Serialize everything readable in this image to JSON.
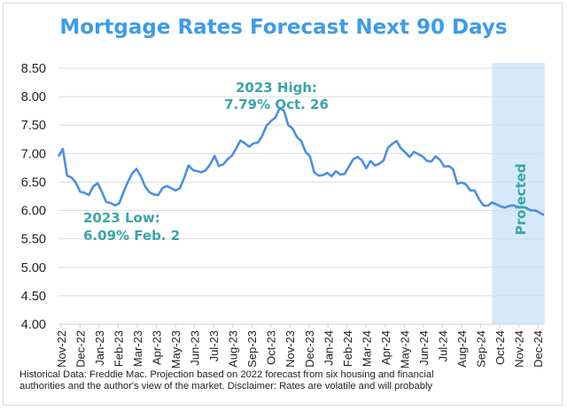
{
  "chart_data": {
    "type": "line",
    "title": "Mortgage Rates Forecast Next 90 Days",
    "xlabel": "",
    "ylabel": "",
    "ylim": [
      4.0,
      8.5
    ],
    "yticks": [
      "4.00",
      "4.50",
      "5.00",
      "5.50",
      "6.00",
      "6.50",
      "7.00",
      "7.50",
      "8.00",
      "8.50"
    ],
    "xticks": [
      "Nov-22",
      "Dec-22",
      "Jan-23",
      "Feb-23",
      "Mar-23",
      "Apr-23",
      "May-23",
      "Jun-23",
      "Jul-23",
      "Aug-23",
      "Sep-23",
      "Oct-23",
      "Nov-23",
      "Dec-23",
      "Jan-24",
      "Feb-24",
      "Mar-24",
      "Apr-24",
      "May-24",
      "Jun-24",
      "Jul-24",
      "Aug-24",
      "Sep-24",
      "Oct-24",
      "Nov-24",
      "Dec-24"
    ],
    "grid": true,
    "line_color": "#4a90e2",
    "projected_band_color": "#d6e9fb",
    "series": [
      {
        "x": [
          "2022-11-03",
          "2022-11-10",
          "2022-11-17",
          "2022-11-23",
          "2022-12-01",
          "2022-12-08",
          "2022-12-15",
          "2022-12-22",
          "2022-12-29",
          "2023-01-05",
          "2023-01-12",
          "2023-01-19",
          "2023-01-26",
          "2023-02-02",
          "2023-02-09",
          "2023-02-16",
          "2023-02-23",
          "2023-03-02",
          "2023-03-09",
          "2023-03-16",
          "2023-03-23",
          "2023-03-30",
          "2023-04-06",
          "2023-04-13",
          "2023-04-20",
          "2023-04-27",
          "2023-05-04",
          "2023-05-11",
          "2023-05-18",
          "2023-05-25",
          "2023-06-01",
          "2023-06-08",
          "2023-06-15",
          "2023-06-22",
          "2023-06-29",
          "2023-07-06",
          "2023-07-13",
          "2023-07-20",
          "2023-07-27",
          "2023-08-03",
          "2023-08-10",
          "2023-08-17",
          "2023-08-24",
          "2023-08-31",
          "2023-09-07",
          "2023-09-14",
          "2023-09-21",
          "2023-09-28",
          "2023-10-05",
          "2023-10-12",
          "2023-10-19",
          "2023-10-26",
          "2023-11-02",
          "2023-11-09",
          "2023-11-16",
          "2023-11-22",
          "2023-11-30",
          "2023-12-07",
          "2023-12-14",
          "2023-12-21",
          "2023-12-28",
          "2024-01-04",
          "2024-01-11",
          "2024-01-18",
          "2024-01-25",
          "2024-02-01",
          "2024-02-08",
          "2024-02-15",
          "2024-02-22",
          "2024-02-29",
          "2024-03-07",
          "2024-03-14",
          "2024-03-21",
          "2024-03-28",
          "2024-04-04",
          "2024-04-11",
          "2024-04-18",
          "2024-04-25",
          "2024-05-02",
          "2024-05-09",
          "2024-05-16",
          "2024-05-23",
          "2024-05-30",
          "2024-06-06",
          "2024-06-13",
          "2024-06-20",
          "2024-06-27",
          "2024-07-03",
          "2024-07-11",
          "2024-07-18",
          "2024-07-25",
          "2024-08-01",
          "2024-08-08",
          "2024-08-15",
          "2024-08-22",
          "2024-08-29",
          "2024-09-05",
          "2024-09-12",
          "2024-09-19",
          "2024-09-26"
        ],
        "y": [
          6.95,
          7.08,
          6.61,
          6.58,
          6.49,
          6.33,
          6.31,
          6.27,
          6.42,
          6.48,
          6.33,
          6.15,
          6.13,
          6.09,
          6.12,
          6.32,
          6.5,
          6.65,
          6.73,
          6.6,
          6.42,
          6.32,
          6.28,
          6.27,
          6.39,
          6.43,
          6.39,
          6.35,
          6.39,
          6.57,
          6.79,
          6.71,
          6.69,
          6.67,
          6.71,
          6.81,
          6.96,
          6.78,
          6.81,
          6.9,
          6.96,
          7.09,
          7.23,
          7.18,
          7.12,
          7.18,
          7.19,
          7.31,
          7.49,
          7.57,
          7.63,
          7.79,
          7.76,
          7.5,
          7.44,
          7.29,
          7.22,
          7.03,
          6.95,
          6.67,
          6.61,
          6.62,
          6.66,
          6.6,
          6.69,
          6.63,
          6.64,
          6.77,
          6.9,
          6.94,
          6.88,
          6.74,
          6.87,
          6.79,
          6.82,
          6.88,
          7.1,
          7.17,
          7.22,
          7.09,
          7.02,
          6.94,
          7.03,
          6.99,
          6.95,
          6.87,
          6.86,
          6.95,
          6.89,
          6.77,
          6.78,
          6.73,
          6.47,
          6.49,
          6.46,
          6.35,
          6.35,
          6.2,
          6.09,
          6.08
        ]
      },
      {
        "x": [
          "2024-10-03",
          "2024-10-10",
          "2024-10-17",
          "2024-10-24",
          "2024-10-31",
          "2024-11-07",
          "2024-11-14",
          "2024-11-21",
          "2024-11-28",
          "2024-12-05",
          "2024-12-12",
          "2024-12-19",
          "2024-12-26"
        ],
        "y": [
          6.14,
          6.11,
          6.07,
          6.05,
          6.08,
          6.09,
          6.06,
          6.06,
          6.04,
          6.0,
          6.0,
          5.96,
          5.92
        ]
      }
    ],
    "annotations": {
      "high_line1": "2023 High:",
      "high_line2": "7.79% Oct. 26",
      "low_line1": "2023 Low:",
      "low_line2": "6.09% Feb. 2",
      "projected": "Projected",
      "color": "#3aa5a8"
    }
  },
  "footnote": {
    "line1": "Historical Data: Freddie Mac. Projection based on 2022 forecast from six housing and financial",
    "line2": "authorities and the author's view of the market. Disclaimer: Rates are volatile and will probably"
  }
}
